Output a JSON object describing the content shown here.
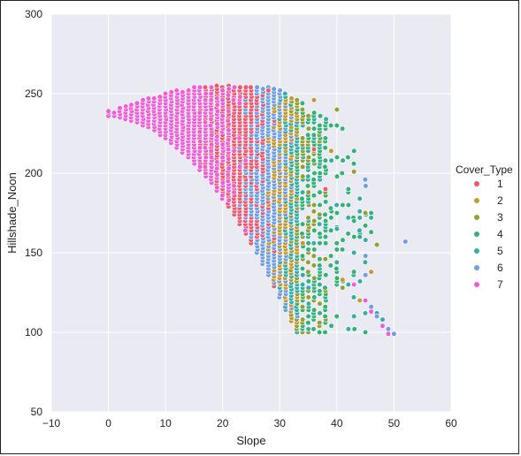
{
  "chart_data": {
    "type": "scatter",
    "xlabel": "Slope",
    "ylabel": "Hillshade_Noon",
    "xlim": [
      -10,
      60
    ],
    "ylim": [
      50,
      300
    ],
    "xticks": [
      -10,
      0,
      10,
      20,
      30,
      40,
      50,
      60
    ],
    "yticks": [
      50,
      100,
      150,
      200,
      250,
      300
    ],
    "grid": true,
    "legend": {
      "title": "Cover_Type",
      "placement": "right-outside",
      "entries": [
        {
          "label": "1",
          "color": "#f0576f"
        },
        {
          "label": "2",
          "color": "#c39a32"
        },
        {
          "label": "3",
          "color": "#91a030"
        },
        {
          "label": "4",
          "color": "#33b177"
        },
        {
          "label": "5",
          "color": "#36ada4"
        },
        {
          "label": "6",
          "color": "#6e9de6"
        },
        {
          "label": "7",
          "color": "#f35bd8"
        }
      ]
    },
    "series": [
      {
        "name": "1",
        "color": "#f0576f",
        "region": {
          "xmin": 2,
          "xmax": 40,
          "center": 22,
          "spread": 9
        },
        "outliers": [
          [
            28,
            252
          ],
          [
            36,
            215
          ],
          [
            38,
            190
          ]
        ]
      },
      {
        "name": "2",
        "color": "#c39a32",
        "region": {
          "xmin": 15,
          "xmax": 42,
          "center": 31,
          "spread": 5
        },
        "outliers": [
          [
            36,
            246
          ],
          [
            39,
            214
          ],
          [
            41,
            133
          ],
          [
            46,
            138
          ],
          [
            44,
            120
          ]
        ]
      },
      {
        "name": "3",
        "color": "#91a030",
        "region": {
          "xmin": 18,
          "xmax": 46,
          "center": 34,
          "spread": 4
        },
        "outliers": [
          [
            40,
            240
          ],
          [
            43,
            201
          ],
          [
            45,
            175
          ],
          [
            47,
            155
          ],
          [
            41,
            128
          ]
        ]
      },
      {
        "name": "4",
        "color": "#33b177",
        "region": {
          "xmin": 20,
          "xmax": 48,
          "center": 35,
          "spread": 4
        },
        "outliers": [
          [
            40,
            175
          ],
          [
            43,
            170
          ],
          [
            45,
            167
          ],
          [
            46,
            175
          ],
          [
            44,
            160
          ],
          [
            46,
            163
          ]
        ]
      },
      {
        "name": "5",
        "color": "#36ada4",
        "region": {
          "xmin": 15,
          "xmax": 48,
          "center": 33,
          "spread": 5
        },
        "outliers": [
          [
            46,
            172
          ],
          [
            40,
            165
          ],
          [
            47,
            112
          ],
          [
            48,
            108
          ]
        ]
      },
      {
        "name": "6",
        "color": "#6e9de6",
        "region": {
          "xmin": 10,
          "xmax": 48,
          "center": 28,
          "spread": 7
        },
        "outliers": [
          [
            52,
            157
          ],
          [
            50,
            99
          ],
          [
            49,
            102
          ],
          [
            46,
            116
          ],
          [
            47,
            110
          ]
        ]
      },
      {
        "name": "7",
        "color": "#f35bd8",
        "region": {
          "xmin": 0,
          "xmax": 40,
          "center": 17,
          "spread": 9
        },
        "outliers": [
          [
            0,
            239
          ],
          [
            1,
            238
          ],
          [
            49,
            99
          ],
          [
            48,
            104
          ],
          [
            45,
            120
          ],
          [
            46,
            113
          ],
          [
            43,
            130
          ]
        ]
      }
    ]
  }
}
